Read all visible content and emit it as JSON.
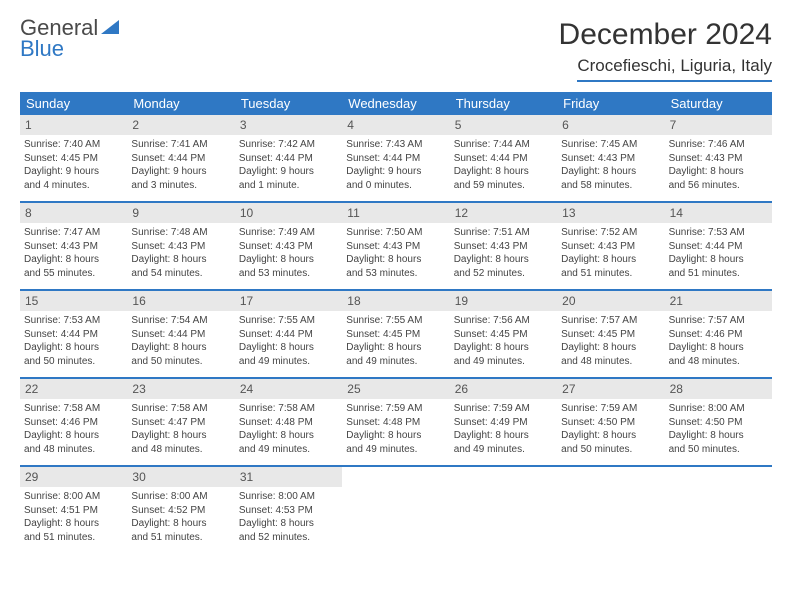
{
  "logo": {
    "word1": "General",
    "word2": "Blue"
  },
  "header": {
    "title": "December 2024",
    "location": "Crocefieschi, Liguria, Italy"
  },
  "colors": {
    "accent": "#2f78c4",
    "num_bg": "#e8e8e8",
    "text": "#444444"
  },
  "dow": [
    "Sunday",
    "Monday",
    "Tuesday",
    "Wednesday",
    "Thursday",
    "Friday",
    "Saturday"
  ],
  "weeks": [
    [
      {
        "n": "1",
        "sr": "Sunrise: 7:40 AM",
        "ss": "Sunset: 4:45 PM",
        "dl1": "Daylight: 9 hours",
        "dl2": "and 4 minutes."
      },
      {
        "n": "2",
        "sr": "Sunrise: 7:41 AM",
        "ss": "Sunset: 4:44 PM",
        "dl1": "Daylight: 9 hours",
        "dl2": "and 3 minutes."
      },
      {
        "n": "3",
        "sr": "Sunrise: 7:42 AM",
        "ss": "Sunset: 4:44 PM",
        "dl1": "Daylight: 9 hours",
        "dl2": "and 1 minute."
      },
      {
        "n": "4",
        "sr": "Sunrise: 7:43 AM",
        "ss": "Sunset: 4:44 PM",
        "dl1": "Daylight: 9 hours",
        "dl2": "and 0 minutes."
      },
      {
        "n": "5",
        "sr": "Sunrise: 7:44 AM",
        "ss": "Sunset: 4:44 PM",
        "dl1": "Daylight: 8 hours",
        "dl2": "and 59 minutes."
      },
      {
        "n": "6",
        "sr": "Sunrise: 7:45 AM",
        "ss": "Sunset: 4:43 PM",
        "dl1": "Daylight: 8 hours",
        "dl2": "and 58 minutes."
      },
      {
        "n": "7",
        "sr": "Sunrise: 7:46 AM",
        "ss": "Sunset: 4:43 PM",
        "dl1": "Daylight: 8 hours",
        "dl2": "and 56 minutes."
      }
    ],
    [
      {
        "n": "8",
        "sr": "Sunrise: 7:47 AM",
        "ss": "Sunset: 4:43 PM",
        "dl1": "Daylight: 8 hours",
        "dl2": "and 55 minutes."
      },
      {
        "n": "9",
        "sr": "Sunrise: 7:48 AM",
        "ss": "Sunset: 4:43 PM",
        "dl1": "Daylight: 8 hours",
        "dl2": "and 54 minutes."
      },
      {
        "n": "10",
        "sr": "Sunrise: 7:49 AM",
        "ss": "Sunset: 4:43 PM",
        "dl1": "Daylight: 8 hours",
        "dl2": "and 53 minutes."
      },
      {
        "n": "11",
        "sr": "Sunrise: 7:50 AM",
        "ss": "Sunset: 4:43 PM",
        "dl1": "Daylight: 8 hours",
        "dl2": "and 53 minutes."
      },
      {
        "n": "12",
        "sr": "Sunrise: 7:51 AM",
        "ss": "Sunset: 4:43 PM",
        "dl1": "Daylight: 8 hours",
        "dl2": "and 52 minutes."
      },
      {
        "n": "13",
        "sr": "Sunrise: 7:52 AM",
        "ss": "Sunset: 4:43 PM",
        "dl1": "Daylight: 8 hours",
        "dl2": "and 51 minutes."
      },
      {
        "n": "14",
        "sr": "Sunrise: 7:53 AM",
        "ss": "Sunset: 4:44 PM",
        "dl1": "Daylight: 8 hours",
        "dl2": "and 51 minutes."
      }
    ],
    [
      {
        "n": "15",
        "sr": "Sunrise: 7:53 AM",
        "ss": "Sunset: 4:44 PM",
        "dl1": "Daylight: 8 hours",
        "dl2": "and 50 minutes."
      },
      {
        "n": "16",
        "sr": "Sunrise: 7:54 AM",
        "ss": "Sunset: 4:44 PM",
        "dl1": "Daylight: 8 hours",
        "dl2": "and 50 minutes."
      },
      {
        "n": "17",
        "sr": "Sunrise: 7:55 AM",
        "ss": "Sunset: 4:44 PM",
        "dl1": "Daylight: 8 hours",
        "dl2": "and 49 minutes."
      },
      {
        "n": "18",
        "sr": "Sunrise: 7:55 AM",
        "ss": "Sunset: 4:45 PM",
        "dl1": "Daylight: 8 hours",
        "dl2": "and 49 minutes."
      },
      {
        "n": "19",
        "sr": "Sunrise: 7:56 AM",
        "ss": "Sunset: 4:45 PM",
        "dl1": "Daylight: 8 hours",
        "dl2": "and 49 minutes."
      },
      {
        "n": "20",
        "sr": "Sunrise: 7:57 AM",
        "ss": "Sunset: 4:45 PM",
        "dl1": "Daylight: 8 hours",
        "dl2": "and 48 minutes."
      },
      {
        "n": "21",
        "sr": "Sunrise: 7:57 AM",
        "ss": "Sunset: 4:46 PM",
        "dl1": "Daylight: 8 hours",
        "dl2": "and 48 minutes."
      }
    ],
    [
      {
        "n": "22",
        "sr": "Sunrise: 7:58 AM",
        "ss": "Sunset: 4:46 PM",
        "dl1": "Daylight: 8 hours",
        "dl2": "and 48 minutes."
      },
      {
        "n": "23",
        "sr": "Sunrise: 7:58 AM",
        "ss": "Sunset: 4:47 PM",
        "dl1": "Daylight: 8 hours",
        "dl2": "and 48 minutes."
      },
      {
        "n": "24",
        "sr": "Sunrise: 7:58 AM",
        "ss": "Sunset: 4:48 PM",
        "dl1": "Daylight: 8 hours",
        "dl2": "and 49 minutes."
      },
      {
        "n": "25",
        "sr": "Sunrise: 7:59 AM",
        "ss": "Sunset: 4:48 PM",
        "dl1": "Daylight: 8 hours",
        "dl2": "and 49 minutes."
      },
      {
        "n": "26",
        "sr": "Sunrise: 7:59 AM",
        "ss": "Sunset: 4:49 PM",
        "dl1": "Daylight: 8 hours",
        "dl2": "and 49 minutes."
      },
      {
        "n": "27",
        "sr": "Sunrise: 7:59 AM",
        "ss": "Sunset: 4:50 PM",
        "dl1": "Daylight: 8 hours",
        "dl2": "and 50 minutes."
      },
      {
        "n": "28",
        "sr": "Sunrise: 8:00 AM",
        "ss": "Sunset: 4:50 PM",
        "dl1": "Daylight: 8 hours",
        "dl2": "and 50 minutes."
      }
    ],
    [
      {
        "n": "29",
        "sr": "Sunrise: 8:00 AM",
        "ss": "Sunset: 4:51 PM",
        "dl1": "Daylight: 8 hours",
        "dl2": "and 51 minutes."
      },
      {
        "n": "30",
        "sr": "Sunrise: 8:00 AM",
        "ss": "Sunset: 4:52 PM",
        "dl1": "Daylight: 8 hours",
        "dl2": "and 51 minutes."
      },
      {
        "n": "31",
        "sr": "Sunrise: 8:00 AM",
        "ss": "Sunset: 4:53 PM",
        "dl1": "Daylight: 8 hours",
        "dl2": "and 52 minutes."
      },
      null,
      null,
      null,
      null
    ]
  ]
}
